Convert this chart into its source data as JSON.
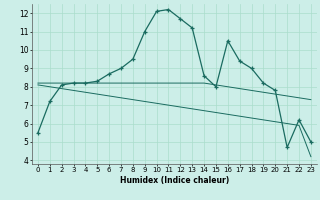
{
  "xlabel": "Humidex (Indice chaleur)",
  "bg_color": "#cceee8",
  "line_color": "#1a6b60",
  "grid_color": "#aaddcc",
  "x_values": [
    0,
    1,
    2,
    3,
    4,
    5,
    6,
    7,
    8,
    9,
    10,
    11,
    12,
    13,
    14,
    15,
    16,
    17,
    18,
    19,
    20,
    21,
    22,
    23
  ],
  "y_main": [
    5.5,
    7.2,
    8.1,
    8.2,
    8.2,
    8.3,
    8.7,
    9.0,
    9.5,
    11.0,
    12.1,
    12.2,
    11.7,
    11.2,
    8.6,
    8.0,
    10.5,
    9.4,
    9.0,
    8.2,
    7.8,
    4.7,
    6.2,
    5.0
  ],
  "y_linear1": [
    8.2,
    8.2,
    8.2,
    8.2,
    8.2,
    8.2,
    8.2,
    8.2,
    8.2,
    8.2,
    8.2,
    8.2,
    8.2,
    8.2,
    8.2,
    8.1,
    8.0,
    7.9,
    7.8,
    7.7,
    7.6,
    7.5,
    7.4,
    7.3
  ],
  "y_linear2": [
    8.1,
    8.0,
    7.9,
    7.8,
    7.7,
    7.6,
    7.5,
    7.4,
    7.3,
    7.2,
    7.1,
    7.0,
    6.9,
    6.8,
    6.7,
    6.6,
    6.5,
    6.4,
    6.3,
    6.2,
    6.1,
    6.0,
    5.9,
    4.2
  ],
  "ylim": [
    3.8,
    12.5
  ],
  "xlim": [
    -0.5,
    23.5
  ],
  "yticks": [
    4,
    5,
    6,
    7,
    8,
    9,
    10,
    11,
    12
  ],
  "xticks": [
    0,
    1,
    2,
    3,
    4,
    5,
    6,
    7,
    8,
    9,
    10,
    11,
    12,
    13,
    14,
    15,
    16,
    17,
    18,
    19,
    20,
    21,
    22,
    23
  ],
  "xlabel_fontsize": 5.5,
  "tick_fontsize": 5.0,
  "linewidth_main": 0.9,
  "linewidth_aux": 0.7,
  "marker_size": 3.5,
  "marker_lw": 0.9
}
